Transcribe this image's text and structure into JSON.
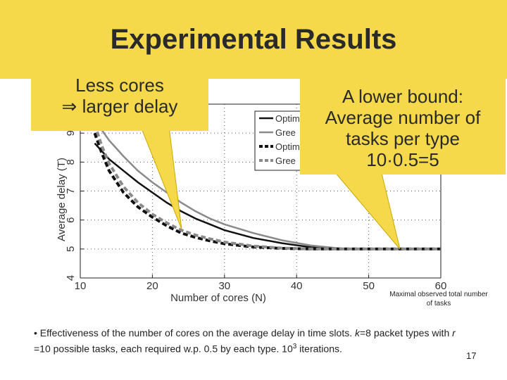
{
  "slide": {
    "title": "Experimental Results",
    "page_number": "17",
    "accent_color": "#f5d94a"
  },
  "callouts": {
    "left_line1": "Less cores",
    "left_symbol": "⇒",
    "left_line2": "larger delay",
    "right_line1": "A lower bound:",
    "right_line2": "Average number of",
    "right_line3": "tasks per type",
    "right_line4": "10·0.5=5"
  },
  "annotation": "Maximal observed total number of tasks",
  "footnote": {
    "part1": "• Effectiveness of the number of cores on the average delay in time slots. ",
    "k": "k",
    "part2": "=8 packet types with ",
    "r": "r",
    "part3": " =10 possible tasks, each required w.p. 0.5 by each type. 10",
    "exp": "3",
    "part4": " iterations."
  },
  "chart_data": {
    "type": "line",
    "xlabel": "Number of cores (N)",
    "ylabel": "Average delay (T)",
    "xlim": [
      10,
      60
    ],
    "ylim": [
      4,
      10
    ],
    "xticks": [
      10,
      20,
      30,
      40,
      50,
      60
    ],
    "yticks": [
      4,
      5,
      6,
      7,
      8,
      9
    ],
    "grid": true,
    "legend_position": "top-right",
    "series": [
      {
        "name": "Optim",
        "color": "#111111",
        "style": "solid",
        "x": [
          12,
          14,
          16,
          18,
          20,
          22,
          24,
          26,
          28,
          30,
          34,
          38,
          42,
          46,
          50,
          55,
          60
        ],
        "y": [
          8.65,
          8.1,
          7.7,
          7.3,
          6.95,
          6.6,
          6.3,
          6.05,
          5.85,
          5.65,
          5.38,
          5.2,
          5.06,
          5.0,
          5.0,
          5.0,
          5.0
        ]
      },
      {
        "name": "Gree",
        "color": "#8a8a8a",
        "style": "solid",
        "x": [
          12,
          14,
          16,
          18,
          20,
          22,
          24,
          26,
          28,
          30,
          34,
          38,
          42,
          46,
          50,
          55,
          60
        ],
        "y": [
          9.45,
          8.75,
          8.2,
          7.7,
          7.3,
          6.95,
          6.6,
          6.3,
          6.05,
          5.85,
          5.55,
          5.3,
          5.12,
          5.02,
          5.0,
          5.0,
          5.0
        ]
      },
      {
        "name": "Optim",
        "color": "#111111",
        "style": "dashed",
        "x": [
          12,
          13,
          14,
          16,
          18,
          20,
          22,
          24,
          26,
          28,
          30,
          34,
          38,
          42,
          46,
          50,
          55,
          60
        ],
        "y": [
          9.0,
          8.3,
          7.7,
          6.95,
          6.45,
          6.1,
          5.8,
          5.55,
          5.4,
          5.28,
          5.18,
          5.07,
          5.02,
          5.0,
          5.0,
          5.0,
          5.0,
          5.0
        ]
      },
      {
        "name": "Gree",
        "color": "#8a8a8a",
        "style": "dashed",
        "x": [
          12,
          13,
          14,
          16,
          18,
          20,
          22,
          24,
          26,
          28,
          30,
          34,
          38,
          42,
          46,
          50,
          55,
          60
        ],
        "y": [
          9.3,
          8.55,
          7.95,
          7.15,
          6.6,
          6.2,
          5.9,
          5.65,
          5.48,
          5.35,
          5.24,
          5.1,
          5.03,
          5.0,
          5.0,
          5.0,
          5.0,
          5.0
        ]
      }
    ]
  }
}
